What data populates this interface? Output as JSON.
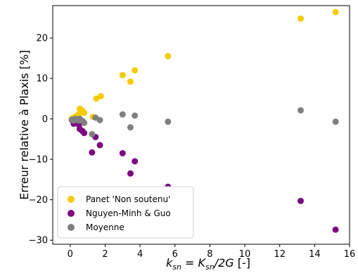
{
  "chart_data": {
    "type": "scatter",
    "title": "",
    "xlabel": "K_sn / 2G [-]",
    "xlabel_parts": {
      "lhs_symbol": "k",
      "lhs_subscript": "sn",
      "equals": " = ",
      "rhs_symbol": "K",
      "rhs_subscript": "sn",
      "rhs_rest": "/2G",
      "unit": " [-]"
    },
    "ylabel": "Erreur relative à Plaxis [%]",
    "xlim": [
      -1,
      16
    ],
    "ylim": [
      -31,
      28
    ],
    "xticks": [
      0,
      2,
      4,
      6,
      8,
      10,
      12,
      14,
      16
    ],
    "yticks": [
      -30,
      -20,
      -10,
      0,
      10,
      20
    ],
    "grid": false,
    "legend": {
      "location": "lower-left",
      "entries": [
        "Panet 'Non soutenu'",
        "Nguyen-Minh & Guo",
        "Moyenne"
      ]
    },
    "series": [
      {
        "name": "Panet 'Non soutenu'",
        "color": "#f4cc00",
        "points": [
          [
            0.1,
            0.1
          ],
          [
            0.2,
            0.3
          ],
          [
            0.3,
            0.5
          ],
          [
            0.4,
            0.8
          ],
          [
            0.5,
            1.2
          ],
          [
            0.55,
            2.5
          ],
          [
            0.7,
            2.0
          ],
          [
            0.8,
            1.5
          ],
          [
            1.3,
            0.5
          ],
          [
            1.5,
            5.0
          ],
          [
            1.75,
            5.6
          ],
          [
            3.0,
            10.8
          ],
          [
            3.45,
            9.2
          ],
          [
            3.7,
            12.0
          ],
          [
            5.6,
            15.5
          ],
          [
            13.2,
            24.8
          ],
          [
            15.2,
            26.4
          ]
        ]
      },
      {
        "name": "Nguyen-Minh & Guo",
        "color": "#7b0a82",
        "points": [
          [
            0.1,
            -0.3
          ],
          [
            0.2,
            -1.2
          ],
          [
            0.3,
            -0.5
          ],
          [
            0.4,
            -1.0
          ],
          [
            0.5,
            -1.5
          ],
          [
            0.55,
            -2.5
          ],
          [
            0.7,
            -3.0
          ],
          [
            0.8,
            -3.5
          ],
          [
            1.25,
            -8.3
          ],
          [
            1.45,
            -4.5
          ],
          [
            1.7,
            -6.5
          ],
          [
            3.0,
            -8.5
          ],
          [
            3.45,
            -13.5
          ],
          [
            3.7,
            -10.5
          ],
          [
            5.6,
            -16.8
          ],
          [
            13.2,
            -20.3
          ],
          [
            15.2,
            -27.4
          ]
        ]
      },
      {
        "name": "Moyenne",
        "color": "#808080",
        "points": [
          [
            0.1,
            -0.2
          ],
          [
            0.2,
            -0.4
          ],
          [
            0.3,
            0.0
          ],
          [
            0.4,
            -0.2
          ],
          [
            0.5,
            -0.4
          ],
          [
            0.55,
            0.0
          ],
          [
            0.7,
            -0.5
          ],
          [
            0.8,
            -1.0
          ],
          [
            1.25,
            -3.8
          ],
          [
            1.45,
            0.3
          ],
          [
            1.7,
            -0.3
          ],
          [
            3.0,
            1.1
          ],
          [
            3.45,
            -2.1
          ],
          [
            3.7,
            0.8
          ],
          [
            5.6,
            -0.7
          ],
          [
            13.2,
            2.1
          ],
          [
            15.2,
            -0.7
          ]
        ]
      }
    ]
  }
}
